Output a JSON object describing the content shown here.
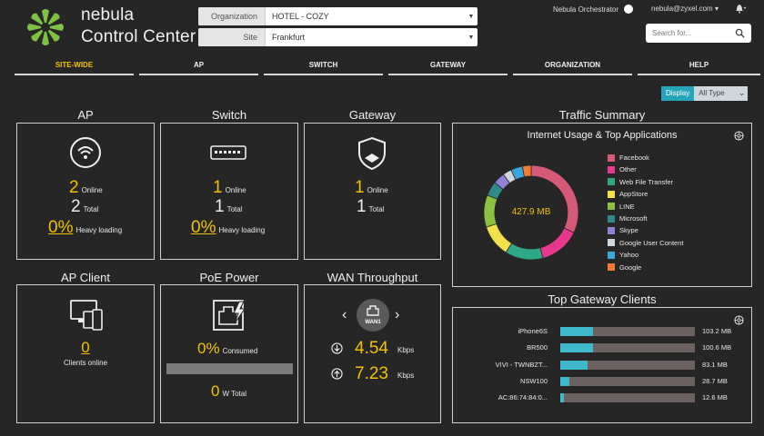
{
  "brand": {
    "line1": "nebula",
    "line2": "Control Center"
  },
  "selectors": {
    "organization": {
      "label": "Organization",
      "value": "HOTEL - COZY"
    },
    "site": {
      "label": "Site",
      "value": "Frankfurt"
    }
  },
  "header": {
    "orchestrator": "Nebula Orchestrator",
    "user": "nebula@zyxel.com",
    "user_caret": "▾",
    "search_placeholder": "Search for..."
  },
  "nav": {
    "tabs": [
      {
        "label": "SITE-WIDE",
        "active": true
      },
      {
        "label": "AP"
      },
      {
        "label": "SWITCH"
      },
      {
        "label": "GATEWAY"
      },
      {
        "label": "ORGANIZATION"
      },
      {
        "label": "HELP"
      }
    ]
  },
  "display": {
    "label": "Display",
    "type": "All Type"
  },
  "ap": {
    "title": "AP",
    "online": "2",
    "online_label": "Online",
    "total": "2",
    "total_label": "Total",
    "loading": "0%",
    "loading_label": "Heavy loading"
  },
  "switch": {
    "title": "Switch",
    "online": "1",
    "online_label": "Online",
    "total": "1",
    "total_label": "Total",
    "loading": "0%",
    "loading_label": "Heavy loading"
  },
  "gateway": {
    "title": "Gateway",
    "online": "1",
    "online_label": "Online",
    "total": "1",
    "total_label": "Total"
  },
  "ap_client": {
    "title": "AP Client",
    "count": "0",
    "label": "Clients online"
  },
  "poe": {
    "title": "PoE Power",
    "consumed": "0%",
    "consumed_label": "Consumed",
    "total": "0",
    "total_label": "W Total",
    "fill": 0
  },
  "wan": {
    "title": "WAN Throughput",
    "port": "WAN1",
    "down": "4.54",
    "down_unit": "Kbps",
    "up": "7.23",
    "up_unit": "Kbps"
  },
  "traffic": {
    "title": "Traffic Summary",
    "subtitle": "Internet Usage & Top Applications",
    "total": "427.9 MB",
    "apps": [
      {
        "name": "Facebook",
        "color": "#d65a78",
        "share": 32
      },
      {
        "name": "Other",
        "color": "#e8378f",
        "share": 14
      },
      {
        "name": "Web File Transfer",
        "color": "#2fa887",
        "share": 13
      },
      {
        "name": "AppStore",
        "color": "#f3e04a",
        "share": 11
      },
      {
        "name": "LINE",
        "color": "#8cc040",
        "share": 11
      },
      {
        "name": "Microsoft",
        "color": "#2f8a88",
        "share": 5
      },
      {
        "name": "Skype",
        "color": "#9182d6",
        "share": 4
      },
      {
        "name": "Google User Content",
        "color": "#cfd6dc",
        "share": 3
      },
      {
        "name": "Yahoo",
        "color": "#3aa6dc",
        "share": 4
      },
      {
        "name": "Google",
        "color": "#f07b2e",
        "share": 3
      }
    ]
  },
  "gateway_clients": {
    "title": "Top Gateway Clients",
    "clients": [
      {
        "name": "iPhone6S",
        "value": "103.2 MB",
        "fraction": 0.24
      },
      {
        "name": "BR500",
        "value": "100.6 MB",
        "fraction": 0.24
      },
      {
        "name": "VIVI - TWNBZT...",
        "value": "83.1 MB",
        "fraction": 0.2
      },
      {
        "name": "NSW100",
        "value": "28.7 MB",
        "fraction": 0.07
      },
      {
        "name": "AC:86:74:84:0...",
        "value": "12.6 MB",
        "fraction": 0.03
      }
    ]
  }
}
